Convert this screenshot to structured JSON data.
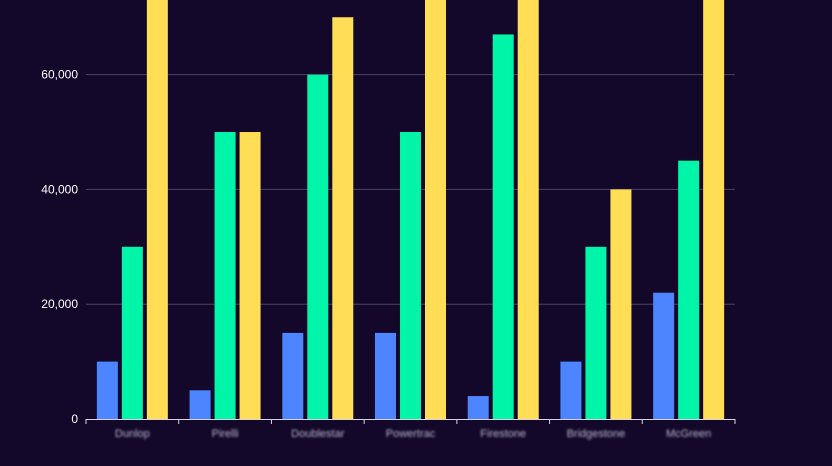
{
  "chart_data": {
    "type": "bar",
    "categories": [
      "Dunlop",
      "Pirelli",
      "Doublestar",
      "Powertrac",
      "Firestone",
      "Bridgestone",
      "McGreen"
    ],
    "series": [
      {
        "values": [
          10000,
          5000,
          15000,
          15000,
          4000,
          10000,
          22000
        ]
      },
      {
        "values": [
          30000,
          50000,
          60000,
          50000,
          67000,
          30000,
          45000
        ]
      },
      {
        "values": [
          80000,
          50000,
          70000,
          80000,
          80000,
          40000,
          80000
        ]
      }
    ],
    "yticks": [
      "0",
      "20,000",
      "40,000",
      "60,000"
    ],
    "ylim": [
      0,
      73000
    ],
    "grid": true,
    "colors": [
      "#4d84ff",
      "#00f5a8",
      "#ffdd55"
    ]
  }
}
